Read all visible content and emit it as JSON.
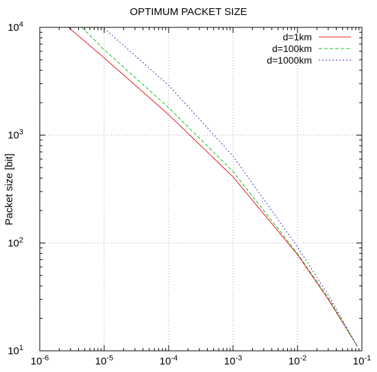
{
  "chart_data": {
    "type": "line",
    "title": "OPTIMUM PACKET SIZE",
    "xlabel": "",
    "ylabel": "Packet size [bit]",
    "x_scale": "log",
    "y_scale": "log",
    "xlim": [
      1e-06,
      0.1
    ],
    "ylim": [
      10,
      10000
    ],
    "grid": true,
    "legend_position": "top-right",
    "x_ticks": [
      {
        "base": "10",
        "exp": "-6",
        "value": 1e-06
      },
      {
        "base": "10",
        "exp": "-5",
        "value": 1e-05
      },
      {
        "base": "10",
        "exp": "-4",
        "value": 0.0001
      },
      {
        "base": "10",
        "exp": "-3",
        "value": 0.001
      },
      {
        "base": "10",
        "exp": "-2",
        "value": 0.01
      },
      {
        "base": "10",
        "exp": "-1",
        "value": 0.1
      }
    ],
    "y_ticks": [
      {
        "base": "10",
        "exp": "1",
        "value": 10
      },
      {
        "base": "10",
        "exp": "2",
        "value": 100
      },
      {
        "base": "10",
        "exp": "3",
        "value": 1000
      },
      {
        "base": "10",
        "exp": "4",
        "value": 10000
      }
    ],
    "series": [
      {
        "name": "d=1km",
        "color": "#e8141b",
        "dash": "solid",
        "x": [
          2.8e-06,
          1e-05,
          0.0001,
          0.001,
          0.01,
          0.03,
          0.085
        ],
        "y": [
          10000,
          5200,
          1550,
          410,
          78,
          30,
          11
        ]
      },
      {
        "name": "d=100km",
        "color": "#11c011",
        "dash": "dashed",
        "x": [
          4.5e-06,
          1e-05,
          0.0001,
          0.001,
          0.01,
          0.03,
          0.085
        ],
        "y": [
          10000,
          6200,
          1800,
          460,
          80,
          31,
          11
        ]
      },
      {
        "name": "d=1000km",
        "color": "#2a2ad0",
        "dash": "dotted",
        "x": [
          1e-05,
          0.0001,
          0.001,
          0.01,
          0.03,
          0.085
        ],
        "y": [
          9800,
          2900,
          640,
          92,
          33,
          11
        ]
      }
    ]
  }
}
